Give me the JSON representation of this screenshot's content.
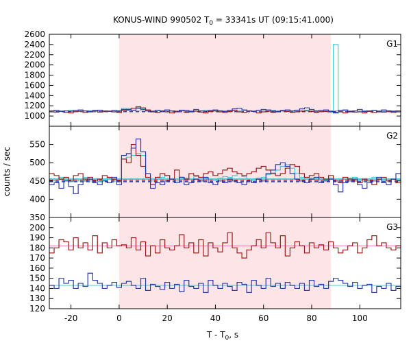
{
  "chart_data": {
    "type": "line",
    "title_main": "KONUS-WIND 990502 T",
    "title_sub": "0",
    "title_rest": " = 33341s UT (09:15:41.000)",
    "xlabel_main": "T - T",
    "xlabel_sub": "0",
    "xlabel_rest": ", s",
    "ylabel": "counts / sec",
    "xlim": [
      -29,
      117
    ],
    "xticks": [
      -20,
      0,
      20,
      40,
      60,
      80,
      100
    ],
    "colors": {
      "shade": "#fde4e6",
      "cyan": "#48c8d8",
      "dark_red": "#9b1b1b",
      "blue": "#2b3aa8",
      "pink_bg": "#e878b8",
      "magenta": "#d848d8"
    },
    "shaded_interval": [
      0,
      88
    ],
    "panels": [
      {
        "label": "G1",
        "ylim": [
          800,
          2600
        ],
        "yticks": [
          1000,
          1200,
          1400,
          1600,
          1800,
          2000,
          2200,
          2400,
          2600
        ],
        "background_levels": [
          {
            "value": 1085,
            "color": "#9b1b1b",
            "dashed": true
          },
          {
            "value": 1095,
            "color": "#2b3aa8",
            "dashed": true
          },
          {
            "value": 1100,
            "color": "#48c8d8",
            "dashed": false
          }
        ],
        "series": [
          {
            "color": "#48c8d8",
            "bin_start": -29,
            "bin_width": 2,
            "values": [
              1100,
              1105,
              1095,
              1100,
              1110,
              1095,
              1090,
              1100,
              1105,
              1095,
              1100,
              1095,
              1100,
              1090,
              1105,
              1150,
              1145,
              1150,
              1160,
              1140,
              1120,
              1100,
              1110,
              1090,
              1105,
              1100,
              1095,
              1110,
              1100,
              1090,
              1105,
              1100,
              1110,
              1095,
              1100,
              1105,
              1090,
              1100,
              1110,
              1095,
              1105,
              1100,
              1090,
              1100,
              1105,
              1100,
              1110,
              1095,
              1100,
              1105,
              1095,
              1100,
              1100,
              1110,
              1105,
              1095,
              1100,
              1105,
              1100,
              2400,
              1110,
              1105,
              1100,
              1100,
              1095,
              1105,
              1100,
              1110,
              1100,
              1095,
              1105,
              1100,
              1100
            ]
          },
          {
            "color": "#9b1b1b",
            "bin_start": -29,
            "bin_width": 2,
            "values": [
              1080,
              1075,
              1090,
              1070,
              1060,
              1085,
              1095,
              1070,
              1080,
              1100,
              1075,
              1085,
              1090,
              1080,
              1070,
              1110,
              1130,
              1150,
              1180,
              1160,
              1120,
              1090,
              1070,
              1100,
              1080,
              1060,
              1090,
              1110,
              1070,
              1080,
              1095,
              1075,
              1060,
              1090,
              1100,
              1080,
              1070,
              1090,
              1110,
              1080,
              1070,
              1100,
              1090,
              1060,
              1080,
              1095,
              1070,
              1080,
              1100,
              1090,
              1070,
              1080,
              1095,
              1100,
              1090,
              1070,
              1085,
              1090,
              1080,
              1070,
              1080,
              1060,
              1090,
              1075,
              1080,
              1060,
              1090,
              1070,
              1080,
              1075,
              1085,
              1070,
              1080
            ]
          },
          {
            "color": "#2b3aa8",
            "bin_start": -29,
            "bin_width": 2,
            "values": [
              1100,
              1110,
              1090,
              1100,
              1095,
              1110,
              1120,
              1100,
              1090,
              1110,
              1115,
              1100,
              1095,
              1110,
              1100,
              1130,
              1120,
              1110,
              1150,
              1130,
              1100,
              1080,
              1110,
              1090,
              1120,
              1100,
              1080,
              1115,
              1110,
              1090,
              1130,
              1100,
              1095,
              1110,
              1120,
              1100,
              1090,
              1110,
              1140,
              1150,
              1120,
              1100,
              1090,
              1110,
              1130,
              1120,
              1100,
              1090,
              1110,
              1120,
              1100,
              1115,
              1140,
              1160,
              1130,
              1100,
              1110,
              1120,
              1090,
              1060,
              1110,
              1120,
              1080,
              1100,
              1130,
              1090,
              1100,
              1110,
              1095,
              1120,
              1100,
              1090,
              1100
            ]
          }
        ]
      },
      {
        "label": "G2",
        "ylim": [
          350,
          600
        ],
        "yticks": [
          350,
          400,
          450,
          500,
          550
        ],
        "background_levels": [
          {
            "value": 454,
            "color": "#e878b8",
            "dashed": false
          },
          {
            "value": 452,
            "color": "#9b1b1b",
            "dashed": true
          },
          {
            "value": 448,
            "color": "#2b3aa8",
            "dashed": true
          },
          {
            "value": 456,
            "color": "#48c8d8",
            "dashed": false
          }
        ],
        "series": [
          {
            "color": "#48c8d8",
            "bin_start": -29,
            "bin_width": 2,
            "values": [
              455,
              450,
              460,
              452,
              448,
              455,
              450,
              460,
              450,
              455,
              448,
              452,
              458,
              450,
              455,
              510,
              515,
              520,
              525,
              520,
              470,
              450,
              455,
              460,
              465,
              455,
              450,
              460,
              458,
              455,
              462,
              460,
              458,
              455,
              452,
              458,
              462,
              460,
              465,
              470,
              462,
              455,
              452,
              458,
              460,
              468,
              472,
              480,
              490,
              495,
              485,
              470,
              460,
              455,
              458,
              460,
              455,
              452,
              458,
              455,
              450,
              455,
              458,
              460,
              452,
              450,
              455,
              460,
              455,
              452,
              450,
              455,
              452
            ]
          },
          {
            "color": "#9b1b1b",
            "bin_start": -29,
            "bin_width": 2,
            "values": [
              470,
              465,
              455,
              460,
              450,
              465,
              470,
              455,
              460,
              450,
              455,
              465,
              460,
              455,
              450,
              510,
              500,
              550,
              520,
              490,
              460,
              440,
              460,
              470,
              465,
              455,
              480,
              460,
              455,
              470,
              465,
              460,
              470,
              475,
              465,
              470,
              480,
              485,
              475,
              470,
              465,
              470,
              475,
              485,
              490,
              480,
              470,
              465,
              470,
              485,
              495,
              490,
              470,
              460,
              465,
              470,
              460,
              455,
              465,
              450,
              445,
              460,
              455,
              450,
              445,
              455,
              450,
              440,
              455,
              460,
              450,
              455,
              445
            ]
          },
          {
            "color": "#2b3aa8",
            "bin_start": -29,
            "bin_width": 2,
            "values": [
              440,
              445,
              430,
              450,
              435,
              415,
              440,
              450,
              455,
              445,
              440,
              450,
              445,
              460,
              440,
              520,
              525,
              540,
              565,
              530,
              470,
              430,
              445,
              440,
              450,
              455,
              445,
              460,
              440,
              445,
              455,
              450,
              460,
              445,
              440,
              450,
              445,
              455,
              450,
              445,
              440,
              450,
              445,
              455,
              450,
              470,
              480,
              495,
              500,
              490,
              470,
              455,
              450,
              445,
              455,
              460,
              445,
              450,
              455,
              440,
              420,
              445,
              450,
              455,
              440,
              430,
              445,
              450,
              460,
              445,
              440,
              455,
              470
            ]
          }
        ]
      },
      {
        "label": "G3",
        "ylim": [
          120,
          210
        ],
        "yticks": [
          120,
          130,
          140,
          150,
          160,
          170,
          180,
          190,
          200
        ],
        "background_levels": [
          {
            "value": 182,
            "color": "#e878b8",
            "dashed": false
          },
          {
            "value": 143,
            "color": "#48c8d8",
            "dashed": false
          }
        ],
        "series": [
          {
            "color": "#9b1b1b",
            "bin_start": -29,
            "bin_width": 2,
            "values": [
              175,
              180,
              188,
              186,
              178,
              190,
              180,
              185,
              178,
              192,
              175,
              185,
              180,
              188,
              182,
              183,
              180,
              190,
              178,
              186,
              172,
              182,
              175,
              188,
              180,
              178,
              182,
              193,
              180,
              185,
              175,
              188,
              172,
              185,
              180,
              176,
              185,
              195,
              180,
              175,
              170,
              178,
              182,
              188,
              180,
              195,
              185,
              180,
              192,
              172,
              180,
              186,
              182,
              175,
              185,
              180,
              183,
              178,
              186,
              180,
              175,
              178,
              182,
              185,
              175,
              180,
              188,
              192,
              182,
              185,
              180,
              178,
              182
            ]
          },
          {
            "color": "#2b3aa8",
            "bin_start": -29,
            "bin_width": 2,
            "values": [
              143,
              140,
              150,
              145,
              148,
              140,
              145,
              142,
              155,
              148,
              145,
              140,
              143,
              146,
              141,
              145,
              147,
              143,
              140,
              150,
              138,
              144,
              142,
              139,
              146,
              140,
              144,
              137,
              148,
              142,
              140,
              145,
              136,
              148,
              143,
              140,
              145,
              142,
              138,
              146,
              144,
              136,
              148,
              143,
              140,
              150,
              142,
              145,
              140,
              146,
              143,
              140,
              145,
              138,
              148,
              142,
              144,
              140,
              147,
              150,
              148,
              145,
              142,
              146,
              140,
              143,
              144,
              136,
              142,
              140,
              145,
              138,
              142
            ]
          }
        ]
      }
    ]
  }
}
